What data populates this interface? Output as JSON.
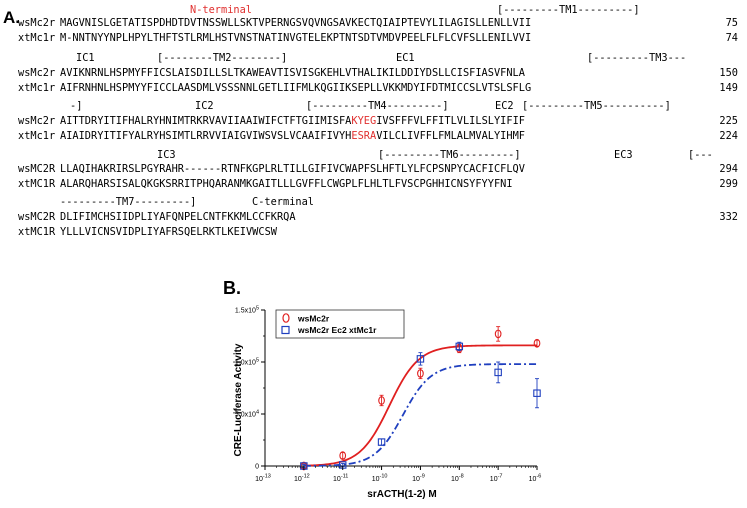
{
  "panel_a": {
    "label": "A.",
    "blocks": [
      {
        "regions": [
          {
            "text": "N-terminal",
            "color": "#e0302f"
          },
          {
            "text": "[---------TM1---------]"
          }
        ],
        "rows": [
          {
            "name": "wsMc2r",
            "seq": "MAGVNISLGETATISPDHDTDVTNSSWLLSKTVPERNGSVQVNGSAVKECTQIAIPTEVYLILAGISLLENLLVII",
            "num": "75"
          },
          {
            "name": "xtMc1r",
            "seq": "M-NNTNYYNPLHPYLTHFTSTLRMLHSTVNSTNATINVGTELEKPTNTSDTVMDVPEELFLFLCVFSLLENILVVI",
            "num": "74"
          }
        ]
      },
      {
        "regions": [
          {
            "text": "IC1"
          },
          {
            "text": "[--------TM2--------]"
          },
          {
            "text": "EC1"
          },
          {
            "text": "[---------TM3---"
          }
        ],
        "rows": [
          {
            "name": "wsMc2r",
            "seq": "AVIKNRNLHSPMYFFICSLAISDILLSLTKAWEAVTISVISGKEHLVTHALIKILDDIYDSLLCISFIASVFNLA",
            "num": "150"
          },
          {
            "name": "xtMc1r",
            "seq": "AIFRNHNLHSPMYYFICCLAASDMLVSSSNNLGETLIIFMLKQGIIKSEPLLVKKMDYIFDTMICCSLVTSLSFLG",
            "num": "149"
          }
        ]
      },
      {
        "regions": [
          {
            "text": "-]"
          },
          {
            "text": "IC2"
          },
          {
            "text": "[---------TM4---------]"
          },
          {
            "text": "EC2"
          },
          {
            "text": "[---------TM5----------]"
          }
        ],
        "rows": [
          {
            "name": "wsMc2r",
            "seq_before": "AITTDRYITIFHALRYHNIMTRKRVAVIIAAIWIFCTFTGIIMISFA",
            "seq_red": "KYEG",
            "seq_after": "IVSFFFVLFFITLVLILSLYIFIF",
            "num": "225"
          },
          {
            "name": "xtMc1r",
            "seq_before": "AIAIDRYITIFYALRYHSIMTLRRVVIAIGVIWSVSLVCAAIFIVYH",
            "seq_red": "ESRA",
            "seq_after": "VILCLIVFFLFMLALMVALYIHMF",
            "num": "224"
          }
        ]
      },
      {
        "regions": [
          {
            "text": "IC3"
          },
          {
            "text": "[---------TM6---------]"
          },
          {
            "text": "EC3"
          },
          {
            "text": "[---"
          }
        ],
        "rows": [
          {
            "name": "wsMC2R",
            "seq": "LLAQIHAKRIRSLPGYRAHR------RTNFKGPLRLTILLGIFIVCWAPFSLHFTLYLFCPSNPYCACFICFLQV",
            "num": "294"
          },
          {
            "name": "xtMC1R",
            "seq": "ALARQHARSISALQKGKSRRITPHQARANMKGAITLLLGVFFLCWGPLFLHLTLFVSCPGHHICNSYFYYFNI",
            "num": "299"
          }
        ]
      },
      {
        "regions": [
          {
            "text": "---------TM7---------]"
          },
          {
            "text": "C-terminal"
          }
        ],
        "rows": [
          {
            "name": "wsMC2R",
            "seq": "DLIFIMCHSIIDPLIYAFQNPELCNTFKKMLCCFKRQA",
            "num": "332"
          },
          {
            "name": "xtMC1R",
            "seq": "YLLLVICNSVIDPLIYAFRSQELRKTLKEIVWCSW",
            "num": ""
          }
        ]
      }
    ]
  },
  "panel_b": {
    "label": "B.",
    "chart_data": {
      "type": "line",
      "xlabel": "srACTH(1-2) M",
      "ylabel": "CRE-Luciferase Activity",
      "x_scale": "log",
      "xlim": [
        1e-13,
        1e-06
      ],
      "ylim": [
        0,
        150000
      ],
      "x_tick_labels": [
        {
          "base": "10",
          "exp": "-13"
        },
        {
          "base": "10",
          "exp": "-12"
        },
        {
          "base": "10",
          "exp": "-11"
        },
        {
          "base": "10",
          "exp": "-10"
        },
        {
          "base": "10",
          "exp": "-9"
        },
        {
          "base": "10",
          "exp": "-8"
        },
        {
          "base": "10",
          "exp": "-7"
        },
        {
          "base": "10",
          "exp": "-6"
        }
      ],
      "y_tick_labels": [
        {
          "value": 0,
          "text": "0",
          "exp": ""
        },
        {
          "value": 50000,
          "text": "5.0x10",
          "exp": "4"
        },
        {
          "value": 100000,
          "text": "1.0x10",
          "exp": "5"
        },
        {
          "value": 150000,
          "text": "1.5x10",
          "exp": "5"
        }
      ],
      "legend_position": "top-left",
      "series": [
        {
          "name": "wsMc2r",
          "color": "#e02020",
          "marker": "circle",
          "line": "solid",
          "curve": {
            "bottom": 0,
            "top": 116000,
            "log_ec50": -9.8,
            "hill": 1.15
          },
          "points": [
            {
              "x": 1e-12,
              "y": 0,
              "err": 2000
            },
            {
              "x": 1e-11,
              "y": 10000,
              "err": 3000
            },
            {
              "x": 1e-10,
              "y": 63000,
              "err": 5000
            },
            {
              "x": 1e-09,
              "y": 89000,
              "err": 5000
            },
            {
              "x": 1e-08,
              "y": 113000,
              "err": 4000
            },
            {
              "x": 1e-07,
              "y": 127000,
              "err": 7000
            },
            {
              "x": 1e-06,
              "y": 118000,
              "err": 3000
            }
          ]
        },
        {
          "name": "wsMc2r Ec2 xtMc1r",
          "color": "#1f3fbf",
          "marker": "square",
          "line": "dash-dot",
          "curve": {
            "bottom": 0,
            "top": 98000,
            "log_ec50": -9.45,
            "hill": 1.2
          },
          "points": [
            {
              "x": 1e-12,
              "y": 0,
              "err": 1500
            },
            {
              "x": 1e-11,
              "y": 1000,
              "err": 1500
            },
            {
              "x": 1e-10,
              "y": 23000,
              "err": 3000
            },
            {
              "x": 1e-09,
              "y": 103000,
              "err": 6000
            },
            {
              "x": 1e-08,
              "y": 115000,
              "err": 4000
            },
            {
              "x": 1e-07,
              "y": 90000,
              "err": 10000
            },
            {
              "x": 1e-06,
              "y": 70000,
              "err": 14000
            }
          ]
        }
      ]
    }
  }
}
